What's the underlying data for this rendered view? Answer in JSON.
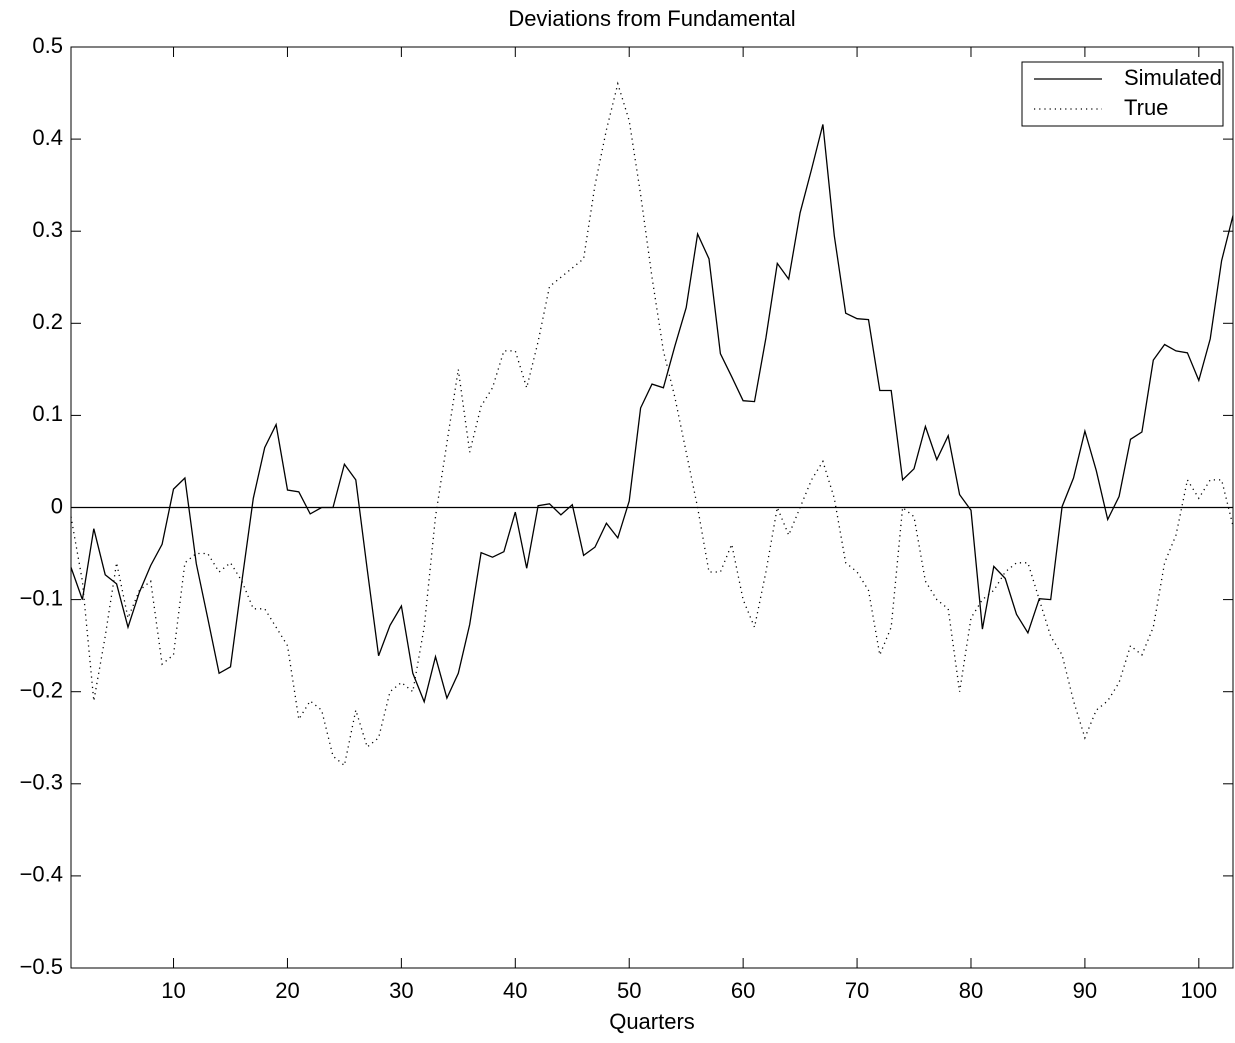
{
  "chart_data": {
    "type": "line",
    "title": "Deviations from Fundamental",
    "x_label": "Quarters",
    "x": [
      1,
      2,
      3,
      4,
      5,
      6,
      7,
      8,
      9,
      10,
      11,
      12,
      13,
      14,
      15,
      16,
      17,
      18,
      19,
      20,
      21,
      22,
      23,
      24,
      25,
      26,
      27,
      28,
      29,
      30,
      31,
      32,
      33,
      34,
      35,
      36,
      37,
      38,
      39,
      40,
      41,
      42,
      43,
      44,
      45,
      46,
      47,
      48,
      49,
      50,
      51,
      52,
      53,
      54,
      55,
      56,
      57,
      58,
      59,
      60,
      61,
      62,
      63,
      64,
      65,
      66,
      67,
      68,
      69,
      70,
      71,
      72,
      73,
      74,
      75,
      76,
      77,
      78,
      79,
      80,
      81,
      82,
      83,
      84,
      85,
      86,
      87,
      88,
      89,
      90,
      91,
      92,
      93,
      94,
      95,
      96,
      97,
      98,
      99,
      100,
      101,
      102,
      103
    ],
    "series": [
      {
        "name": "Simulated",
        "color": "#000000",
        "style": "solid",
        "values": [
          -0.065,
          -0.1,
          -0.023,
          -0.073,
          -0.083,
          -0.13,
          -0.092,
          -0.063,
          -0.04,
          0.02,
          0.032,
          -0.061,
          -0.12,
          -0.18,
          -0.173,
          -0.08,
          0.01,
          0.065,
          0.09,
          0.019,
          0.017,
          -0.007,
          0,
          0,
          0.047,
          0.03,
          -0.067,
          -0.161,
          -0.128,
          -0.107,
          -0.18,
          -0.211,
          -0.162,
          -0.207,
          -0.18,
          -0.127,
          -0.049,
          -0.054,
          -0.048,
          -0.005,
          -0.066,
          0.002,
          0.004,
          -0.008,
          0.003,
          -0.052,
          -0.043,
          -0.017,
          -0.033,
          0.007,
          0.108,
          0.134,
          0.13,
          0.175,
          0.217,
          0.297,
          0.27,
          0.167,
          0.142,
          0.116,
          0.115,
          0.184,
          0.265,
          0.248,
          0.32,
          0.367,
          0.416,
          0.295,
          0.211,
          0.205,
          0.204,
          0.127,
          0.127,
          0.03,
          0.042,
          0.088,
          0.052,
          0.078,
          0.014,
          -0.003,
          -0.132,
          -0.064,
          -0.077,
          -0.116,
          -0.136,
          -0.099,
          -0.1,
          0.001,
          0.032,
          0.083,
          0.04,
          -0.013,
          0.012,
          0.074,
          0.082,
          0.16,
          0.177,
          0.17,
          0.168,
          0.138,
          0.183,
          0.268,
          0.317
        ]
      },
      {
        "name": "True",
        "color": "#000000",
        "style": "dotted",
        "values": [
          -0.01,
          -0.08,
          -0.21,
          -0.14,
          -0.06,
          -0.12,
          -0.09,
          -0.08,
          -0.17,
          -0.16,
          -0.06,
          -0.05,
          -0.05,
          -0.07,
          -0.06,
          -0.08,
          -0.11,
          -0.11,
          -0.13,
          -0.15,
          -0.23,
          -0.21,
          -0.22,
          -0.27,
          -0.28,
          -0.22,
          -0.26,
          -0.25,
          -0.2,
          -0.19,
          -0.2,
          -0.13,
          -0.01,
          0.07,
          0.15,
          0.06,
          0.11,
          0.13,
          0.17,
          0.17,
          0.13,
          0.18,
          0.24,
          0.25,
          0.26,
          0.27,
          0.35,
          0.41,
          0.46,
          0.42,
          0.34,
          0.25,
          0.17,
          0.12,
          0.06,
          0,
          -0.07,
          -0.07,
          -0.04,
          -0.1,
          -0.13,
          -0.07,
          0,
          -0.03,
          0,
          0.03,
          0.05,
          0.01,
          -0.06,
          -0.07,
          -0.09,
          -0.16,
          -0.13,
          0,
          -0.01,
          -0.08,
          -0.1,
          -0.11,
          -0.2,
          -0.12,
          -0.1,
          -0.09,
          -0.07,
          -0.06,
          -0.06,
          -0.1,
          -0.14,
          -0.16,
          -0.21,
          -0.25,
          -0.22,
          -0.21,
          -0.19,
          -0.15,
          -0.16,
          -0.13,
          -0.06,
          -0.03,
          0.03,
          0.01,
          0.03,
          0.03,
          -0.02
        ]
      }
    ],
    "xlim": [
      1,
      103
    ],
    "xticks": [
      10,
      20,
      30,
      40,
      50,
      60,
      70,
      80,
      90,
      100
    ],
    "ylim": [
      -0.5,
      0.5
    ],
    "yticks": [
      {
        "value": -0.5,
        "label": "−0.5"
      },
      {
        "value": -0.4,
        "label": "−0.4"
      },
      {
        "value": -0.3,
        "label": "−0.3"
      },
      {
        "value": -0.2,
        "label": "−0.2"
      },
      {
        "value": -0.1,
        "label": "−0.1"
      },
      0,
      0.1,
      0.2,
      0.3,
      0.4,
      0.5
    ],
    "hlines": [
      0
    ],
    "legend": "upper-right",
    "grid": false
  }
}
